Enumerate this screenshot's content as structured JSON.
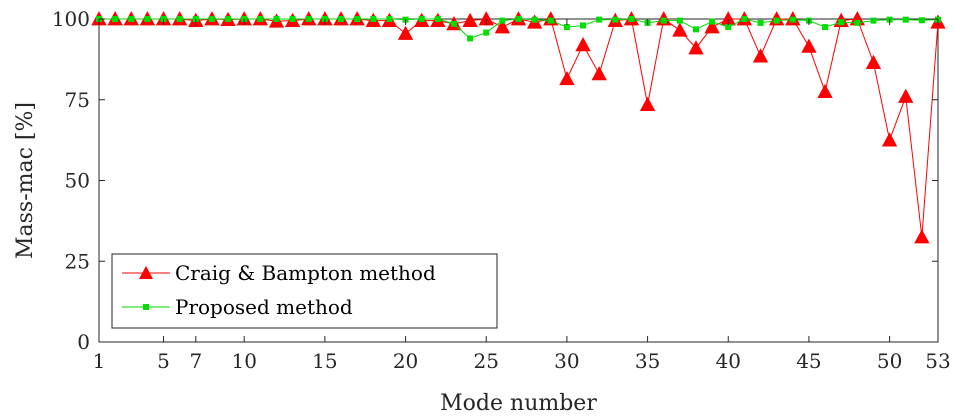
{
  "chart_data": {
    "type": "line",
    "title": "",
    "xlabel": "Mode number",
    "ylabel": "Mass-mac [%]",
    "xlim": [
      1,
      53
    ],
    "ylim": [
      0,
      100
    ],
    "xticks": [
      1,
      5,
      7,
      10,
      15,
      20,
      25,
      30,
      35,
      40,
      45,
      50,
      53
    ],
    "yticks": [
      0,
      25,
      50,
      75,
      100
    ],
    "grid": false,
    "legend_position": "bottom-left",
    "x": [
      1,
      2,
      3,
      4,
      5,
      6,
      7,
      8,
      9,
      10,
      11,
      12,
      13,
      14,
      15,
      16,
      17,
      18,
      19,
      20,
      21,
      22,
      23,
      24,
      25,
      26,
      27,
      28,
      29,
      30,
      31,
      32,
      33,
      34,
      35,
      36,
      37,
      38,
      39,
      40,
      41,
      42,
      43,
      44,
      45,
      46,
      47,
      48,
      49,
      50,
      51,
      52,
      53
    ],
    "series": [
      {
        "name": "Craig & Bampton method",
        "color": "#ff0000",
        "marker": "triangle",
        "values": [
          100,
          100,
          100,
          100,
          100,
          100,
          99.5,
          100,
          99.8,
          100,
          100,
          99.3,
          99.5,
          100,
          100,
          100,
          100,
          99.5,
          99.5,
          95.5,
          99.5,
          99.5,
          98.5,
          99.5,
          100,
          97.5,
          100,
          99,
          100,
          81.5,
          92,
          83,
          99.5,
          100,
          73.5,
          100,
          96.5,
          91,
          97.5,
          100,
          100,
          88.5,
          100,
          100,
          91.5,
          77.5,
          99.5,
          100,
          86.5,
          62.5,
          76,
          32.5,
          99
        ]
      },
      {
        "name": "Proposed method",
        "color": "#00dd00",
        "marker": "square",
        "values": [
          100,
          100,
          100,
          100,
          100,
          100,
          100,
          100,
          100,
          100,
          100,
          100,
          100,
          100,
          100,
          100,
          100,
          100,
          100,
          99.8,
          100,
          100,
          98.5,
          94,
          95.8,
          99.5,
          100,
          99.8,
          99.5,
          97.5,
          98,
          99.8,
          99.8,
          100,
          98.8,
          99.5,
          99.5,
          96.8,
          99.2,
          97.5,
          100,
          98.8,
          99.5,
          99.8,
          99.5,
          97.5,
          99,
          98.8,
          99.5,
          99.8,
          99.8,
          99.6,
          99.8
        ]
      }
    ]
  }
}
